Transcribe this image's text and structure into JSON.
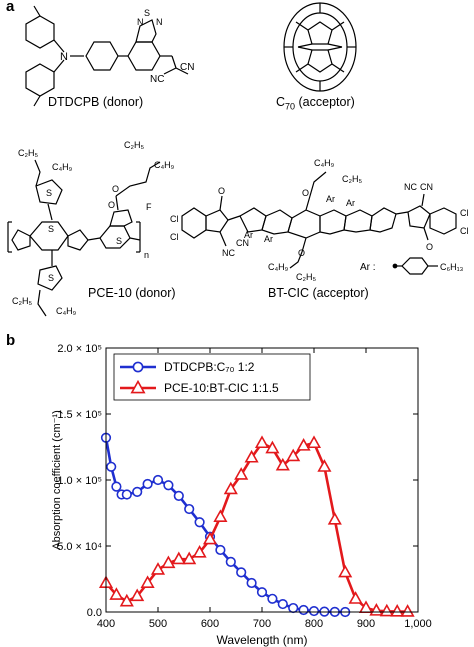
{
  "panel_a": {
    "label": "a",
    "molecules": [
      {
        "id": "dtdcpb",
        "caption": "DTDCPB (donor)"
      },
      {
        "id": "c70",
        "caption_main": "C",
        "caption_sub": "70",
        "caption_rest": " (acceptor)"
      },
      {
        "id": "pce10",
        "caption": "PCE-10 (donor)"
      },
      {
        "id": "btcic",
        "caption": "BT-CIC (acceptor)"
      }
    ],
    "atom_labels": {
      "N": "N",
      "S": "S",
      "F": "F",
      "O": "O",
      "Cl": "Cl",
      "CN": "CN",
      "NC": "NC",
      "Ar": "Ar",
      "C2H5": "C₂H₅",
      "C4H9": "C₄H₉",
      "C6H13": "C₆H₁₃",
      "n": "n",
      "ar_def": "Ar :"
    }
  },
  "panel_b": {
    "label": "b"
  },
  "chart_data": {
    "type": "line",
    "xlabel": "Wavelength (nm)",
    "ylabel": "Absorption coefficient (cm⁻¹)",
    "xlim": [
      400,
      1000
    ],
    "ylim": [
      0,
      200000
    ],
    "x_ticks": [
      "400",
      "500",
      "600",
      "700",
      "800",
      "900",
      "1,000"
    ],
    "y_ticks": [
      "0.0",
      "5.0 × 10⁴",
      "1.0 × 10⁵",
      "1.5 × 10⁵",
      "2.0 × 10⁵"
    ],
    "legend_position": "top-left",
    "series": [
      {
        "name": "DTDCPB:C₇₀ 1:2",
        "color": "#1f2fd0",
        "marker": "circle",
        "x": [
          400,
          410,
          420,
          430,
          440,
          460,
          480,
          500,
          520,
          540,
          560,
          580,
          600,
          620,
          640,
          660,
          680,
          700,
          720,
          740,
          760,
          780,
          800,
          820,
          840,
          860
        ],
        "y": [
          132000,
          110000,
          95000,
          89000,
          89000,
          91000,
          97000,
          100000,
          96000,
          88000,
          78000,
          68000,
          57000,
          47000,
          38000,
          30000,
          22000,
          15000,
          10000,
          6000,
          3000,
          1500,
          700,
          300,
          100,
          0
        ]
      },
      {
        "name": "PCE-10:BT-CIC 1:1.5",
        "color": "#e3191c",
        "marker": "triangle",
        "x": [
          400,
          420,
          440,
          460,
          480,
          500,
          520,
          540,
          560,
          580,
          600,
          620,
          640,
          660,
          680,
          700,
          720,
          740,
          760,
          780,
          800,
          820,
          840,
          860,
          880,
          900,
          920,
          940,
          960,
          980
        ],
        "y": [
          22000,
          13000,
          8000,
          12000,
          22000,
          32000,
          37000,
          40000,
          40000,
          45000,
          55000,
          72000,
          93000,
          104000,
          117000,
          128000,
          124000,
          111000,
          118000,
          126000,
          128000,
          110000,
          70000,
          30000,
          10000,
          3000,
          1000,
          500,
          300,
          200
        ]
      }
    ]
  }
}
